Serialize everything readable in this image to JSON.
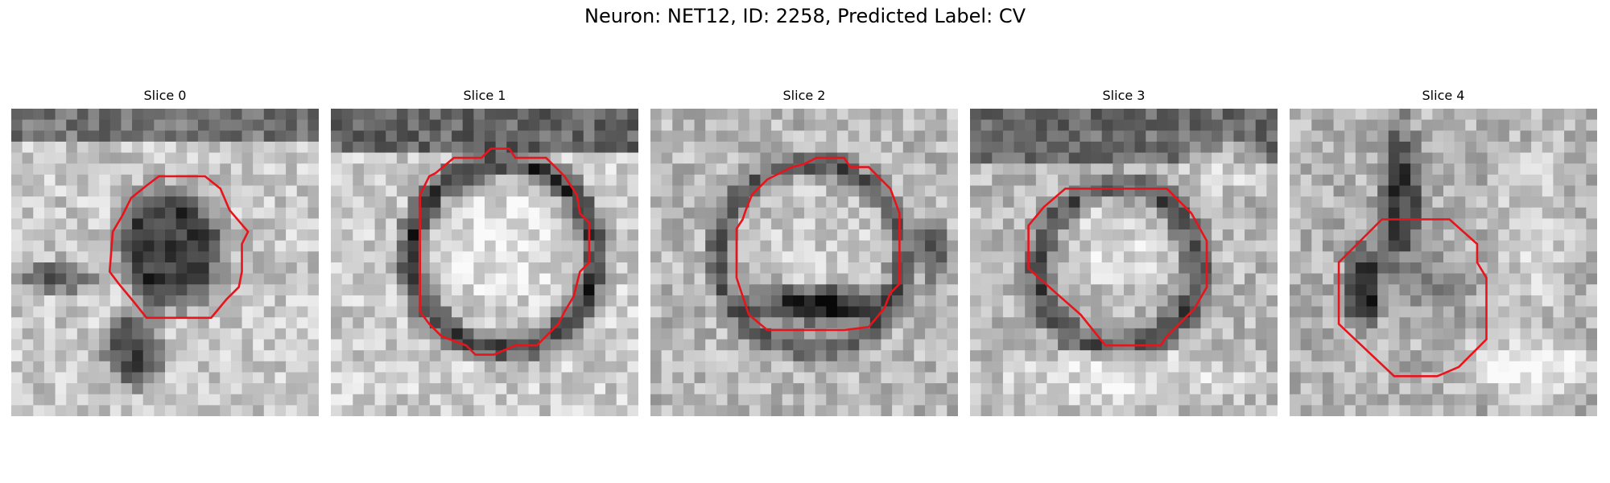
{
  "figure": {
    "title": "Neuron: NET12, ID: 2258, Predicted Label: CV",
    "contour_color": "#e8141c",
    "colormap": "grayscale"
  },
  "slices": [
    {
      "title": "Slice 0",
      "content": "dark rounded blob centered in a lighter noisy field, outlined by a red contour",
      "contour": [
        [
          0.48,
          0.22
        ],
        [
          0.63,
          0.22
        ],
        [
          0.68,
          0.26
        ],
        [
          0.71,
          0.33
        ],
        [
          0.77,
          0.4
        ],
        [
          0.75,
          0.44
        ],
        [
          0.75,
          0.53
        ],
        [
          0.74,
          0.58
        ],
        [
          0.7,
          0.62
        ],
        [
          0.65,
          0.68
        ],
        [
          0.62,
          0.68
        ],
        [
          0.55,
          0.68
        ],
        [
          0.44,
          0.68
        ],
        [
          0.4,
          0.63
        ],
        [
          0.35,
          0.57
        ],
        [
          0.32,
          0.53
        ],
        [
          0.33,
          0.4
        ],
        [
          0.36,
          0.35
        ],
        [
          0.39,
          0.29
        ],
        [
          0.44,
          0.25
        ]
      ]
    },
    {
      "title": "Slice 1",
      "content": "bright interior ringed by dark membrane, outlined by a red contour",
      "contour": [
        [
          0.4,
          0.16
        ],
        [
          0.49,
          0.16
        ],
        [
          0.52,
          0.13
        ],
        [
          0.58,
          0.13
        ],
        [
          0.6,
          0.16
        ],
        [
          0.7,
          0.16
        ],
        [
          0.76,
          0.22
        ],
        [
          0.8,
          0.28
        ],
        [
          0.81,
          0.34
        ],
        [
          0.84,
          0.37
        ],
        [
          0.84,
          0.5
        ],
        [
          0.81,
          0.53
        ],
        [
          0.79,
          0.61
        ],
        [
          0.76,
          0.66
        ],
        [
          0.74,
          0.7
        ],
        [
          0.67,
          0.77
        ],
        [
          0.6,
          0.77
        ],
        [
          0.53,
          0.8
        ],
        [
          0.47,
          0.8
        ],
        [
          0.44,
          0.77
        ],
        [
          0.36,
          0.74
        ],
        [
          0.32,
          0.7
        ],
        [
          0.29,
          0.66
        ],
        [
          0.29,
          0.28
        ],
        [
          0.32,
          0.22
        ],
        [
          0.34,
          0.21
        ]
      ]
    },
    {
      "title": "Slice 2",
      "content": "bright round interior with a darker lower band, outlined by a red contour",
      "contour": [
        [
          0.46,
          0.19
        ],
        [
          0.5,
          0.18
        ],
        [
          0.54,
          0.16
        ],
        [
          0.63,
          0.16
        ],
        [
          0.65,
          0.19
        ],
        [
          0.71,
          0.19
        ],
        [
          0.78,
          0.26
        ],
        [
          0.81,
          0.34
        ],
        [
          0.81,
          0.57
        ],
        [
          0.78,
          0.6
        ],
        [
          0.76,
          0.65
        ],
        [
          0.71,
          0.71
        ],
        [
          0.63,
          0.72
        ],
        [
          0.38,
          0.72
        ],
        [
          0.32,
          0.67
        ],
        [
          0.3,
          0.61
        ],
        [
          0.28,
          0.55
        ],
        [
          0.28,
          0.39
        ],
        [
          0.3,
          0.36
        ],
        [
          0.31,
          0.33
        ],
        [
          0.33,
          0.28
        ],
        [
          0.38,
          0.23
        ]
      ]
    },
    {
      "title": "Slice 3",
      "content": "bright round center surrounded by a dark rim, outlined by a red contour",
      "contour": [
        [
          0.31,
          0.26
        ],
        [
          0.64,
          0.26
        ],
        [
          0.72,
          0.34
        ],
        [
          0.77,
          0.43
        ],
        [
          0.77,
          0.58
        ],
        [
          0.73,
          0.65
        ],
        [
          0.64,
          0.74
        ],
        [
          0.62,
          0.77
        ],
        [
          0.53,
          0.77
        ],
        [
          0.44,
          0.77
        ],
        [
          0.36,
          0.67
        ],
        [
          0.28,
          0.6
        ],
        [
          0.19,
          0.52
        ],
        [
          0.19,
          0.38
        ],
        [
          0.24,
          0.32
        ]
      ]
    },
    {
      "title": "Slice 4",
      "content": "small medium-gray region within a darker structure, outlined by a red contour",
      "contour": [
        [
          0.3,
          0.36
        ],
        [
          0.52,
          0.36
        ],
        [
          0.61,
          0.44
        ],
        [
          0.61,
          0.5
        ],
        [
          0.64,
          0.55
        ],
        [
          0.64,
          0.75
        ],
        [
          0.55,
          0.84
        ],
        [
          0.48,
          0.87
        ],
        [
          0.34,
          0.87
        ],
        [
          0.16,
          0.7
        ],
        [
          0.16,
          0.5
        ]
      ]
    }
  ]
}
